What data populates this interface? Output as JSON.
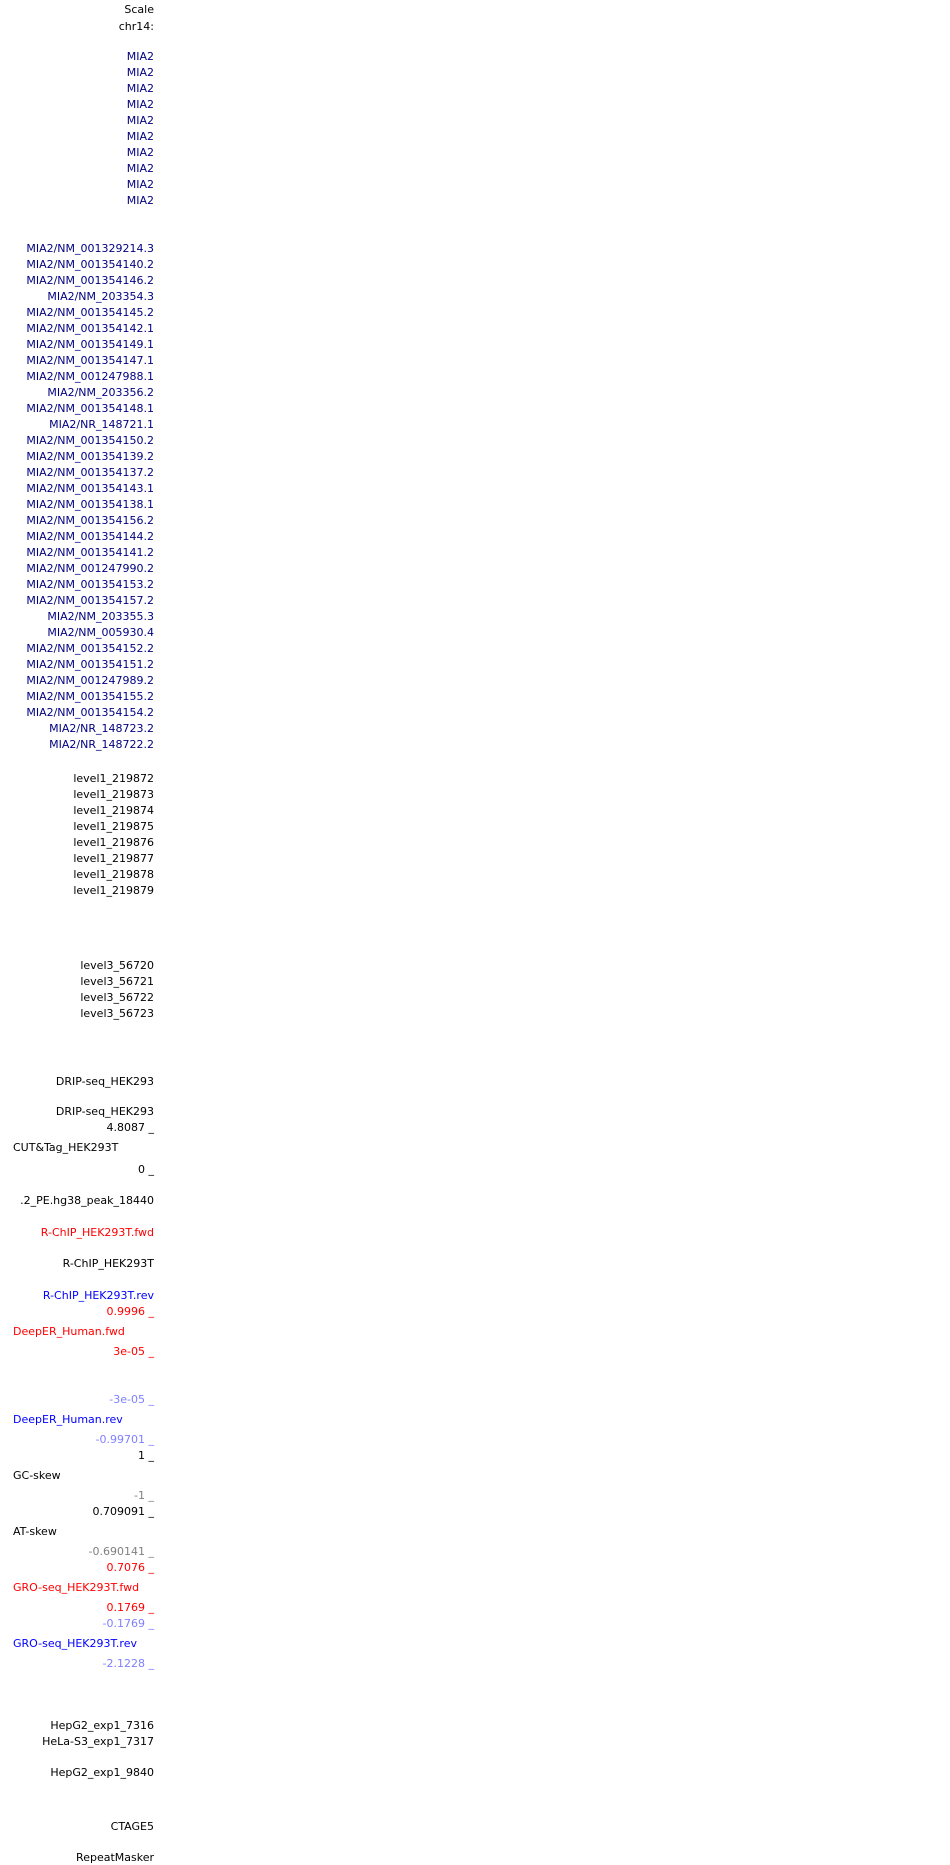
{
  "header": {
    "scale": "Scale",
    "chrom": "chr14:"
  },
  "gene_symbols": [
    "MIA2",
    "MIA2",
    "MIA2",
    "MIA2",
    "MIA2",
    "MIA2",
    "MIA2",
    "MIA2",
    "MIA2",
    "MIA2"
  ],
  "transcripts": [
    "MIA2/NM_001329214.3",
    "MIA2/NM_001354140.2",
    "MIA2/NM_001354146.2",
    "MIA2/NM_203354.3",
    "MIA2/NM_001354145.2",
    "MIA2/NM_001354142.1",
    "MIA2/NM_001354149.1",
    "MIA2/NM_001354147.1",
    "MIA2/NM_001247988.1",
    "MIA2/NM_203356.2",
    "MIA2/NM_001354148.1",
    "MIA2/NR_148721.1",
    "MIA2/NM_001354150.2",
    "MIA2/NM_001354139.2",
    "MIA2/NM_001354137.2",
    "MIA2/NM_001354143.1",
    "MIA2/NM_001354138.1",
    "MIA2/NM_001354156.2",
    "MIA2/NM_001354144.2",
    "MIA2/NM_001354141.2",
    "MIA2/NM_001247990.2",
    "MIA2/NM_001354153.2",
    "MIA2/NM_001354157.2",
    "MIA2/NM_203355.3",
    "MIA2/NM_005930.4",
    "MIA2/NM_001354152.2",
    "MIA2/NM_001354151.2",
    "MIA2/NM_001247989.2",
    "MIA2/NM_001354155.2",
    "MIA2/NM_001354154.2",
    "MIA2/NR_148723.2",
    "MIA2/NR_148722.2"
  ],
  "level1": [
    "level1_219872",
    "level1_219873",
    "level1_219874",
    "level1_219875",
    "level1_219876",
    "level1_219877",
    "level1_219878",
    "level1_219879"
  ],
  "level3": [
    "level3_56720",
    "level3_56721",
    "level3_56722",
    "level3_56723"
  ],
  "tracks": {
    "drip1": "DRIP-seq_HEK293",
    "drip2": "DRIP-seq_HEK293",
    "cuttag_max": "4.8087 _",
    "cuttag": "CUT&Tag_HEK293T",
    "cuttag_min": "0 _",
    "peak": ".2_PE.hg38_peak_18440",
    "rchip_fwd": "R-ChIP_HEK293T.fwd",
    "rchip": "R-ChIP_HEK293T",
    "rchip_rev": "R-ChIP_HEK293T.rev",
    "deeper_fwd_max": "0.9996 _",
    "deeper_fwd": "DeepER_Human.fwd",
    "deeper_fwd_min": "3e-05 _",
    "deeper_rev_max": "-3e-05 _",
    "deeper_rev": "DeepER_Human.rev",
    "deeper_rev_min": "-0.99701 _",
    "gc_max": "1 _",
    "gc": "GC-skew",
    "gc_min": "-1 _",
    "at_max": "0.709091 _",
    "at": "AT-skew",
    "at_min": "-0.690141 _",
    "gro_fwd_max": "0.7076 _",
    "gro_fwd": "GRO-seq_HEK293T.fwd",
    "gro_fwd_min": "0.1769 _",
    "gro_rev_max": "-0.1769 _",
    "gro_rev": "GRO-seq_HEK293T.rev",
    "gro_rev_min": "-2.1228 _",
    "hepg2_1": "HepG2_exp1_7316",
    "hela": "HeLa-S3_exp1_7317",
    "hepg2_2": "HepG2_exp1_9840",
    "ctage5": "CTAGE5",
    "repeatmasker": "RepeatMasker"
  },
  "colors": {
    "gene": "#000080",
    "fwd": "#ff0000",
    "rev": "#0000ff",
    "rev_light": "#7f7fff",
    "muted": "#808080",
    "default": "#000000"
  }
}
